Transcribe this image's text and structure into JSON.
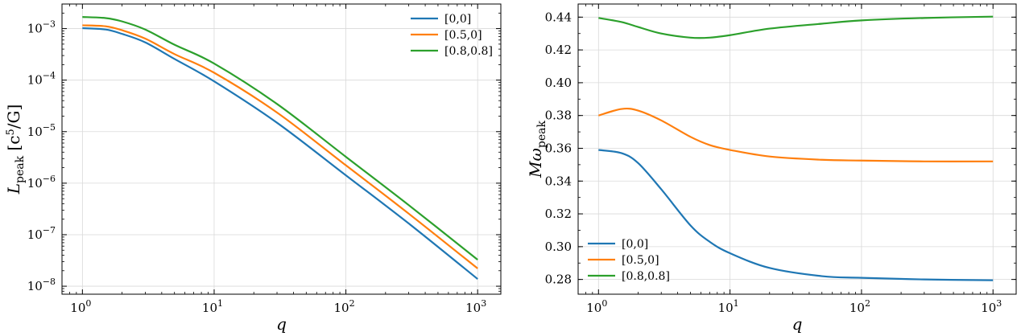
{
  "chart_data": [
    {
      "type": "line",
      "x_scale": "log",
      "y_scale": "log",
      "xlim": [
        0.7,
        1500
      ],
      "ylim": [
        7e-09,
        0.003
      ],
      "xlabel": "q",
      "ylabel": "L_peak [c^5/G]",
      "ylabel_main": "L",
      "ylabel_sub": "peak",
      "ylabel_unit": "[c",
      "ylabel_unit_sup": "5",
      "ylabel_unit_tail": "/G]",
      "xticks": [
        {
          "base": "10",
          "exp": "0",
          "value": 1
        },
        {
          "base": "10",
          "exp": "1",
          "value": 10
        },
        {
          "base": "10",
          "exp": "2",
          "value": 100
        },
        {
          "base": "10",
          "exp": "3",
          "value": 1000
        }
      ],
      "yticks": [
        {
          "base": "10",
          "exp": "−8",
          "value": 1e-08
        },
        {
          "base": "10",
          "exp": "−7",
          "value": 1e-07
        },
        {
          "base": "10",
          "exp": "−6",
          "value": 1e-06
        },
        {
          "base": "10",
          "exp": "−5",
          "value": 1e-05
        },
        {
          "base": "10",
          "exp": "−4",
          "value": 0.0001
        },
        {
          "base": "10",
          "exp": "−3",
          "value": 0.001
        }
      ],
      "grid": true,
      "legend_position": "top-right",
      "x": [
        1,
        1.5,
        2,
        3,
        5,
        10,
        30,
        100,
        300,
        1000
      ],
      "series": [
        {
          "name": "[0,0]",
          "color": "#1f77b4",
          "values": [
            0.00102,
            0.00096,
            0.00079,
            0.00054,
            0.000258,
            9.47e-05,
            1.49e-05,
            1.42e-06,
            1.65e-07,
            1.38e-08
          ]
        },
        {
          "name": "[0.5,0]",
          "color": "#ff7f0e",
          "values": [
            0.00116,
            0.00111,
            0.00093,
            0.000639,
            0.00032,
            0.000139,
            2.35e-05,
            2.22e-06,
            2.56e-07,
            2.21e-08
          ]
        },
        {
          "name": "[0.8,0.8]",
          "color": "#2ca02c",
          "values": [
            0.00168,
            0.0016,
            0.00138,
            0.00096,
            0.000486,
            0.00021,
            3.45e-05,
            3.25e-06,
            3.75e-07,
            3.27e-08
          ]
        }
      ]
    },
    {
      "type": "line",
      "x_scale": "log",
      "y_scale": "linear",
      "xlim": [
        0.7,
        1500
      ],
      "ylim": [
        0.271,
        0.448
      ],
      "xlabel": "q",
      "ylabel": "Mω_peak",
      "ylabel_main": "Mω",
      "ylabel_sub": "peak",
      "xticks": [
        {
          "base": "10",
          "exp": "0",
          "value": 1
        },
        {
          "base": "10",
          "exp": "1",
          "value": 10
        },
        {
          "base": "10",
          "exp": "2",
          "value": 100
        },
        {
          "base": "10",
          "exp": "3",
          "value": 1000
        }
      ],
      "yticks": [
        "0.28",
        "0.30",
        "0.32",
        "0.34",
        "0.36",
        "0.38",
        "0.40",
        "0.42",
        "0.44"
      ],
      "grid": true,
      "legend_position": "bottom-left",
      "x": [
        1,
        1.5,
        2,
        3,
        5,
        7,
        10,
        20,
        50,
        100,
        300,
        1000
      ],
      "series": [
        {
          "name": "[0,0]",
          "color": "#1f77b4",
          "values": [
            0.359,
            0.357,
            0.351,
            0.335,
            0.313,
            0.303,
            0.296,
            0.287,
            0.282,
            0.281,
            0.28,
            0.2795
          ]
        },
        {
          "name": "[0.5,0]",
          "color": "#ff7f0e",
          "values": [
            0.38,
            0.384,
            0.383,
            0.377,
            0.367,
            0.362,
            0.359,
            0.355,
            0.353,
            0.3525,
            0.352,
            0.352
          ]
        },
        {
          "name": "[0.8,0.8]",
          "color": "#2ca02c",
          "values": [
            0.4395,
            0.437,
            0.434,
            0.43,
            0.4275,
            0.4275,
            0.429,
            0.433,
            0.436,
            0.438,
            0.4395,
            0.4403
          ]
        }
      ]
    }
  ]
}
